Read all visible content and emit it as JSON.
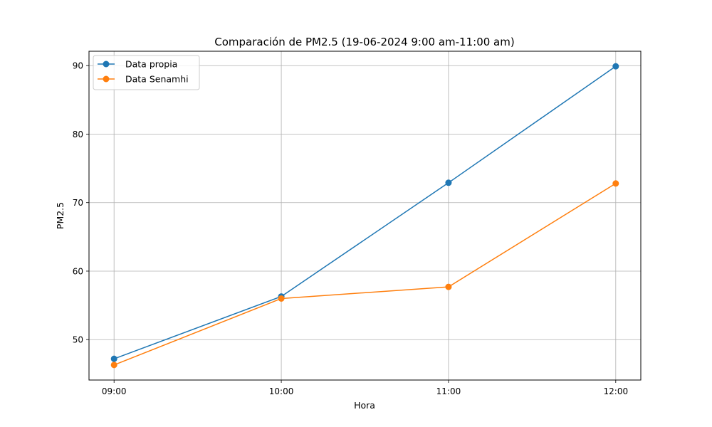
{
  "chart_data": {
    "type": "line",
    "title": "Comparación de PM2.5 (19-06-2024 9:00 am-11:00 am)",
    "xlabel": "Hora",
    "ylabel": "PM2.5",
    "categories": [
      "09:00",
      "10:00",
      "11:00",
      "12:00"
    ],
    "ylim": [
      44.1,
      92.1
    ],
    "yticks": [
      50,
      60,
      70,
      80,
      90
    ],
    "grid": true,
    "legend_position": "top-left",
    "series": [
      {
        "name": "Data propia",
        "values": [
          47.2,
          56.3,
          72.9,
          89.9
        ],
        "color": "#1f77b4"
      },
      {
        "name": "Data Senamhi",
        "values": [
          46.3,
          56.0,
          57.7,
          72.8
        ],
        "color": "#ff7f0e"
      }
    ]
  }
}
